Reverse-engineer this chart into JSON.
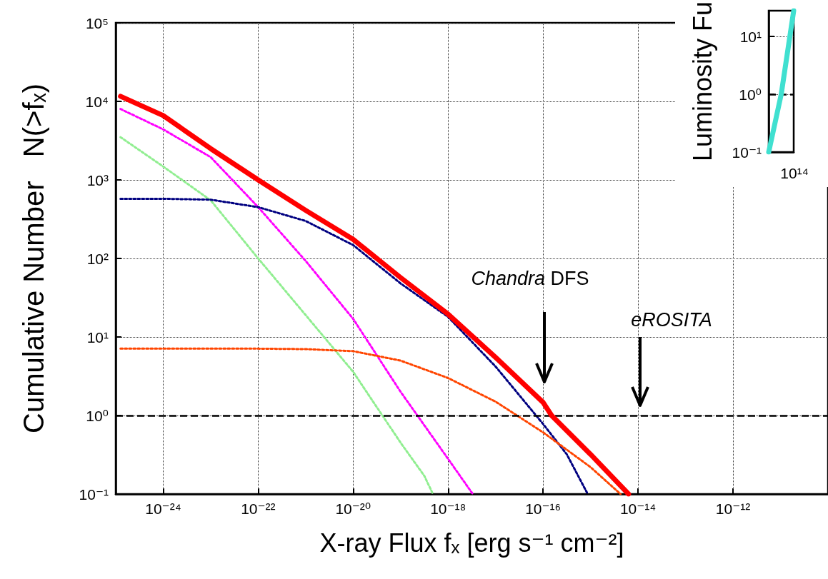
{
  "chart_data": [
    {
      "type": "line",
      "xlabel": "X-ray Flux fₓ [erg s⁻¹ cm⁻²]",
      "ylabel": "Cumulative Number   N(>fₓ)",
      "log": "xy",
      "grid": true,
      "xlim": [
        1e-25,
        1e-10
      ],
      "ylim": [
        0.1,
        100000
      ],
      "xticks": [
        {
          "value": 1e-24,
          "label": "10⁻²⁴"
        },
        {
          "value": 1e-22,
          "label": "10⁻²²"
        },
        {
          "value": 1e-20,
          "label": "10⁻²⁰"
        },
        {
          "value": 1e-18,
          "label": "10⁻¹⁸"
        },
        {
          "value": 1e-16,
          "label": "10⁻¹⁶"
        },
        {
          "value": 1e-14,
          "label": "10⁻¹⁴"
        },
        {
          "value": 1e-12,
          "label": "10⁻¹²"
        }
      ],
      "yticks": [
        {
          "value": 0.1,
          "label": "10⁻¹"
        },
        {
          "value": 1,
          "label": "10⁰"
        },
        {
          "value": 10,
          "label": "10¹"
        },
        {
          "value": 100,
          "label": "10²"
        },
        {
          "value": 1000,
          "label": "10³"
        },
        {
          "value": 10000,
          "label": "10⁴"
        },
        {
          "value": 100000,
          "label": "10⁵"
        }
      ],
      "series": [
        {
          "color": "#ff00ff",
          "line_style": "dotted",
          "x": [
            1.26e-25,
            1e-24,
            1e-23,
            1e-22,
            1e-21,
            1e-20,
            1e-19,
            1e-18,
            3.31e-18
          ],
          "values": [
            8000,
            4400,
            1950,
            450,
            93,
            17,
            2.0,
            0.28,
            0.1
          ]
        },
        {
          "color": "#90ee90",
          "line_style": "dotted",
          "x": [
            1.26e-25,
            1e-24,
            1e-23,
            1e-22,
            1e-21,
            1e-20,
            1e-19,
            3.16e-19,
            4.79e-19
          ],
          "values": [
            3500,
            1480,
            550,
            100,
            19,
            3.6,
            0.45,
            0.17,
            0.1
          ]
        },
        {
          "color": "#000080",
          "line_style": "dotted",
          "x": [
            1.26e-25,
            1e-24,
            1e-23,
            1e-22,
            1e-21,
            1e-20,
            1e-19,
            1e-18,
            1e-17,
            1e-16,
            3.16e-16,
            8.71e-16
          ],
          "values": [
            575,
            575,
            560,
            450,
            300,
            148,
            48,
            18,
            4.2,
            0.78,
            0.32,
            0.1
          ]
        },
        {
          "color": "#ff4500",
          "line_style": "dotted",
          "x": [
            1.26e-25,
            1e-22,
            1e-21,
            1e-20,
            1e-19,
            1e-18,
            1e-17,
            1e-16,
            1e-15,
            4.27e-15
          ],
          "values": [
            7.1,
            7.1,
            7.0,
            6.6,
            5.0,
            3.0,
            1.5,
            0.61,
            0.22,
            0.1
          ]
        },
        {
          "color": "#ff0000",
          "line_style": "solid",
          "x": [
            1.26e-25,
            1e-24,
            1e-23,
            1e-22,
            1e-21,
            1e-20,
            1e-19,
            1e-18,
            1e-17,
            1e-16,
            1.51e-16,
            1e-15,
            6.31e-15
          ],
          "values": [
            11600,
            6600,
            2500,
            1000,
            410,
            175,
            57,
            19.5,
            5.5,
            1.47,
            1,
            0.32,
            0.1
          ]
        }
      ],
      "ref_lines": [
        {
          "axis": "y",
          "value": 1,
          "color": "#000000",
          "line_style": "dashed"
        }
      ],
      "annotations": [
        "Chandra DFS",
        "eROSITA"
      ]
    },
    {
      "type": "line",
      "ylabel": "Luminosity Fu",
      "log": "y",
      "grid": "y",
      "categories": [
        null,
        null,
        null
      ],
      "ylim": [
        0.1,
        28
      ],
      "yticks": [
        {
          "value": 0.1,
          "label": "10⁻¹"
        },
        {
          "value": 1,
          "label": "10⁰"
        },
        {
          "value": 10,
          "label": "10¹"
        }
      ],
      "series": [
        {
          "color": "#40e0d0",
          "line_style": "solid",
          "values": [
            0.1,
            1,
            28
          ]
        }
      ],
      "ref_lines": [
        {
          "axis": "y",
          "value": 1,
          "color": "#000000",
          "line_style": "dashed"
        }
      ],
      "annotations": [
        "10¹⁴"
      ]
    }
  ]
}
